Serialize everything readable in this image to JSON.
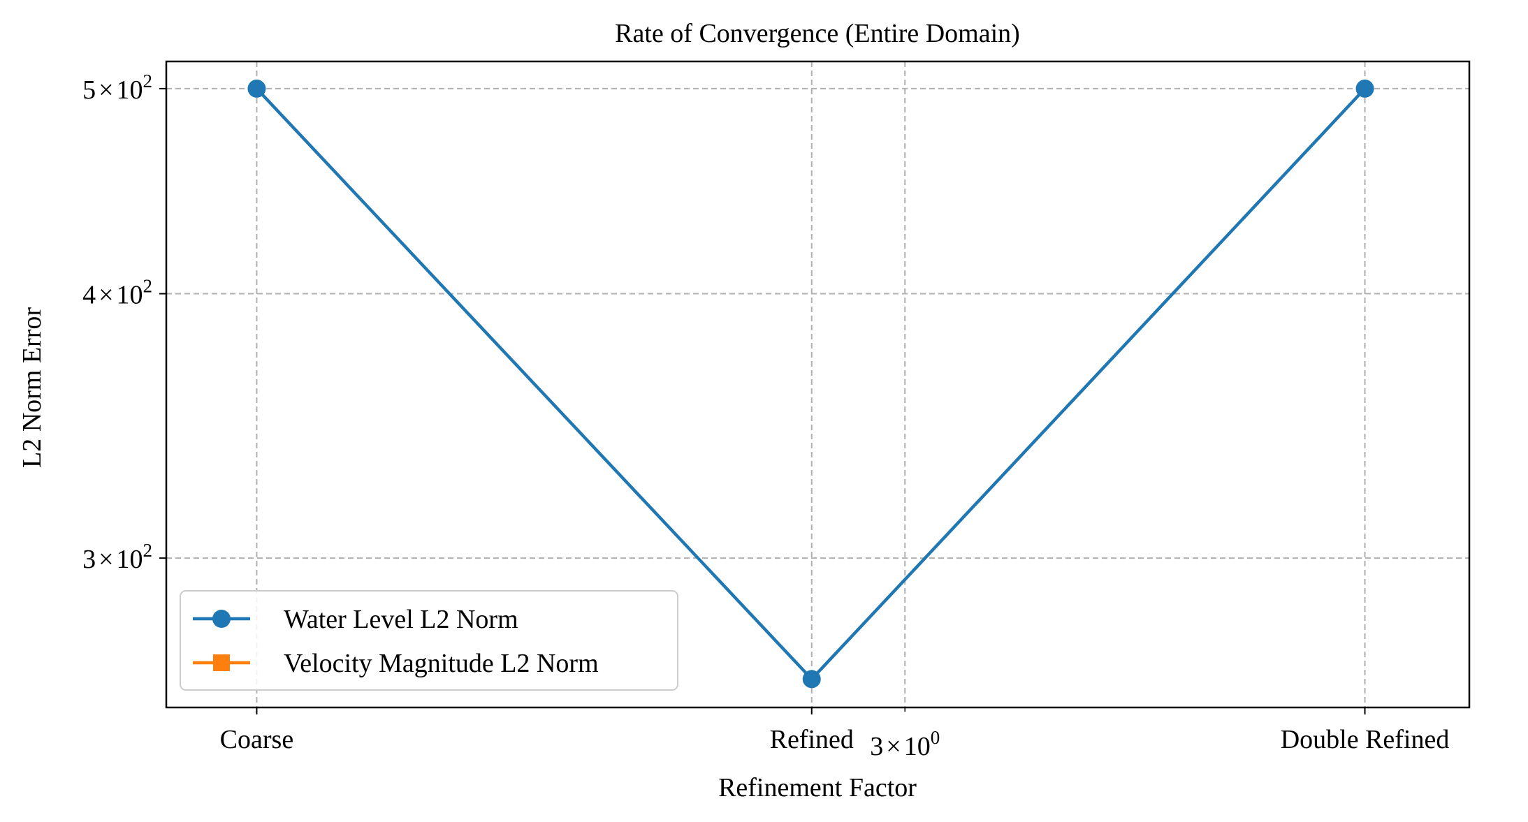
{
  "chart_data": {
    "type": "line",
    "title": "Rate of Convergence (Entire Domain)",
    "xlabel": "Refinement Factor",
    "ylabel": "L2 Norm Error",
    "x_scale": "log",
    "y_scale": "log",
    "xlim": [
      1.89,
      4.27
    ],
    "ylim": [
      255,
      515
    ],
    "x_ticks": [
      {
        "value": 2,
        "label": "Coarse"
      },
      {
        "value": 2.83,
        "label": "Refined"
      },
      {
        "value": 4,
        "label": "Double Refined"
      }
    ],
    "x_minor_ticks": [
      {
        "value": 3,
        "mant": "3",
        "base": "10",
        "exp": "0"
      }
    ],
    "y_ticks": [
      {
        "value": 300,
        "mant": "3",
        "base": "10",
        "exp": "2"
      },
      {
        "value": 400,
        "mant": "4",
        "base": "10",
        "exp": "2"
      },
      {
        "value": 500,
        "mant": "5",
        "base": "10",
        "exp": "2"
      }
    ],
    "series": [
      {
        "name": "Water Level L2 Norm",
        "marker": "circle",
        "color": "#1f77b4",
        "x": [
          2,
          2.83,
          4
        ],
        "y": [
          500,
          263,
          500
        ]
      },
      {
        "name": "Velocity Magnitude L2 Norm",
        "marker": "square",
        "color": "#ff7f0e",
        "x": [],
        "y": []
      }
    ],
    "grid": true,
    "legend_position": "lower-left"
  }
}
